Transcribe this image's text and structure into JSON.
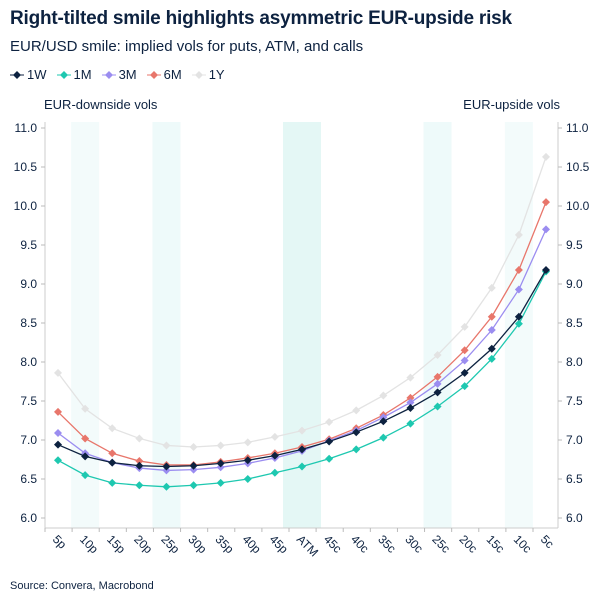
{
  "title": "Right-tilted smile highlights asymmetric EUR-upside risk",
  "subtitle": "EUR/USD smile: implied vols for puts, ATM, and calls",
  "left_label": "EUR-downside vols",
  "right_label": "EUR-upside vols",
  "source": "Source: Convera, Macrobond",
  "chart_data": {
    "type": "line",
    "categories": [
      "5p",
      "10p",
      "15p",
      "20p",
      "25p",
      "30p",
      "35p",
      "40p",
      "45p",
      "ATM",
      "45c",
      "40c",
      "35c",
      "30c",
      "25c",
      "20c",
      "15c",
      "10c",
      "5c"
    ],
    "ylim": [
      5.9,
      11.1
    ],
    "yticks": [
      "6.0",
      "6.5",
      "7.0",
      "7.5",
      "8.0",
      "8.5",
      "9.0",
      "9.5",
      "10.0",
      "10.5",
      "11.0"
    ],
    "highlighted_categories": [
      "10p",
      "25p",
      "ATM",
      "25c",
      "10c"
    ],
    "legend_position": "top-left",
    "series": [
      {
        "name": "1W",
        "color": "#0d2240",
        "values": [
          6.94,
          6.79,
          6.71,
          6.67,
          6.66,
          6.67,
          6.7,
          6.74,
          6.8,
          6.88,
          6.98,
          7.1,
          7.24,
          7.41,
          7.61,
          7.86,
          8.17,
          8.58,
          9.18
        ]
      },
      {
        "name": "1M",
        "color": "#1ec8b0",
        "values": [
          6.74,
          6.55,
          6.45,
          6.42,
          6.4,
          6.42,
          6.45,
          6.5,
          6.58,
          6.66,
          6.76,
          6.88,
          7.03,
          7.21,
          7.43,
          7.69,
          8.04,
          8.49,
          9.16
        ]
      },
      {
        "name": "3M",
        "color": "#9b8df0",
        "values": [
          7.09,
          6.83,
          6.71,
          6.64,
          6.61,
          6.62,
          6.65,
          6.7,
          6.77,
          6.86,
          6.99,
          7.12,
          7.29,
          7.48,
          7.72,
          8.02,
          8.41,
          8.93,
          9.7
        ]
      },
      {
        "name": "6M",
        "color": "#e8766b",
        "values": [
          7.36,
          7.02,
          6.83,
          6.73,
          6.68,
          6.68,
          6.72,
          6.77,
          6.83,
          6.91,
          7.01,
          7.15,
          7.32,
          7.54,
          7.81,
          8.15,
          8.58,
          9.18,
          10.05
        ]
      },
      {
        "name": "1Y",
        "color": "#e3e3e3",
        "values": [
          7.86,
          7.4,
          7.15,
          7.02,
          6.93,
          6.91,
          6.93,
          6.97,
          7.04,
          7.12,
          7.23,
          7.38,
          7.57,
          7.8,
          8.09,
          8.45,
          8.95,
          9.63,
          10.63
        ]
      }
    ]
  }
}
